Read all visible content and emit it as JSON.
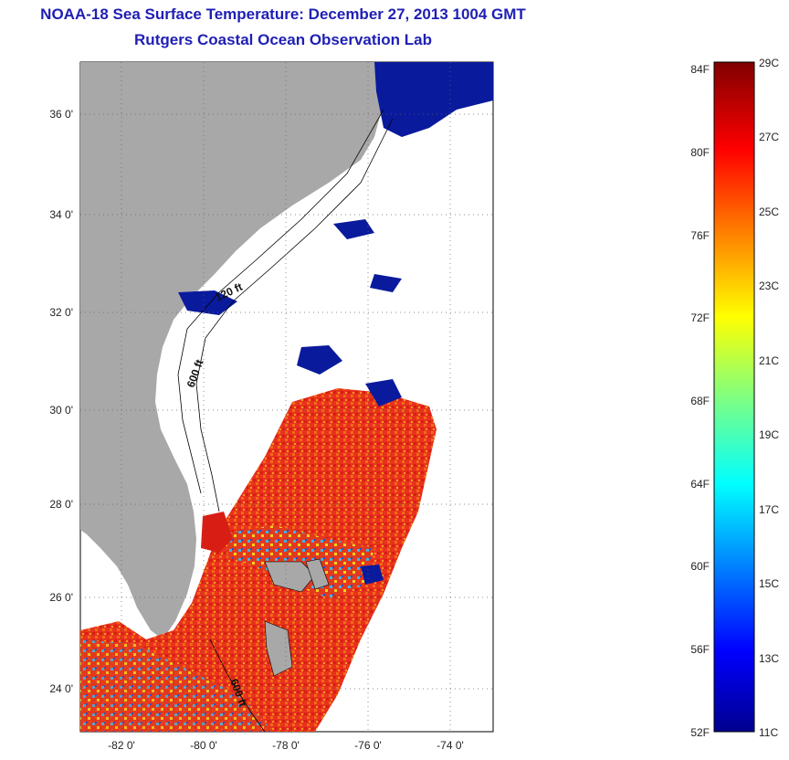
{
  "header": {
    "title_line1": "NOAA-18 Sea Surface Temperature:  December 27, 2013 1004 GMT",
    "title_line2": "Rutgers Coastal Ocean Observation Lab"
  },
  "map": {
    "lat_ticks": [
      "24 0'",
      "26 0'",
      "28 0'",
      "30 0'",
      "32 0'",
      "34 0'",
      "36 0'"
    ],
    "lon_ticks": [
      "-82 0'",
      "-80 0'",
      "-78 0'",
      "-76 0'",
      "-74 0'"
    ],
    "contour_labels": [
      "120 ft",
      "600 ft",
      "600 ft"
    ],
    "colors": {
      "land": "#a8a8a8",
      "warm": "#e8321e",
      "hot": "#d81e14",
      "orange": "#f27a14",
      "cold": "#0a1a9c",
      "mid": "#3fb6e8"
    }
  },
  "colorbar": {
    "fahrenheit_labels": [
      "84F",
      "80F",
      "76F",
      "72F",
      "68F",
      "64F",
      "60F",
      "56F",
      "52F"
    ],
    "celsius_labels": [
      "29C",
      "27C",
      "25C",
      "23C",
      "21C",
      "19C",
      "17C",
      "15C",
      "13C",
      "11C"
    ]
  }
}
